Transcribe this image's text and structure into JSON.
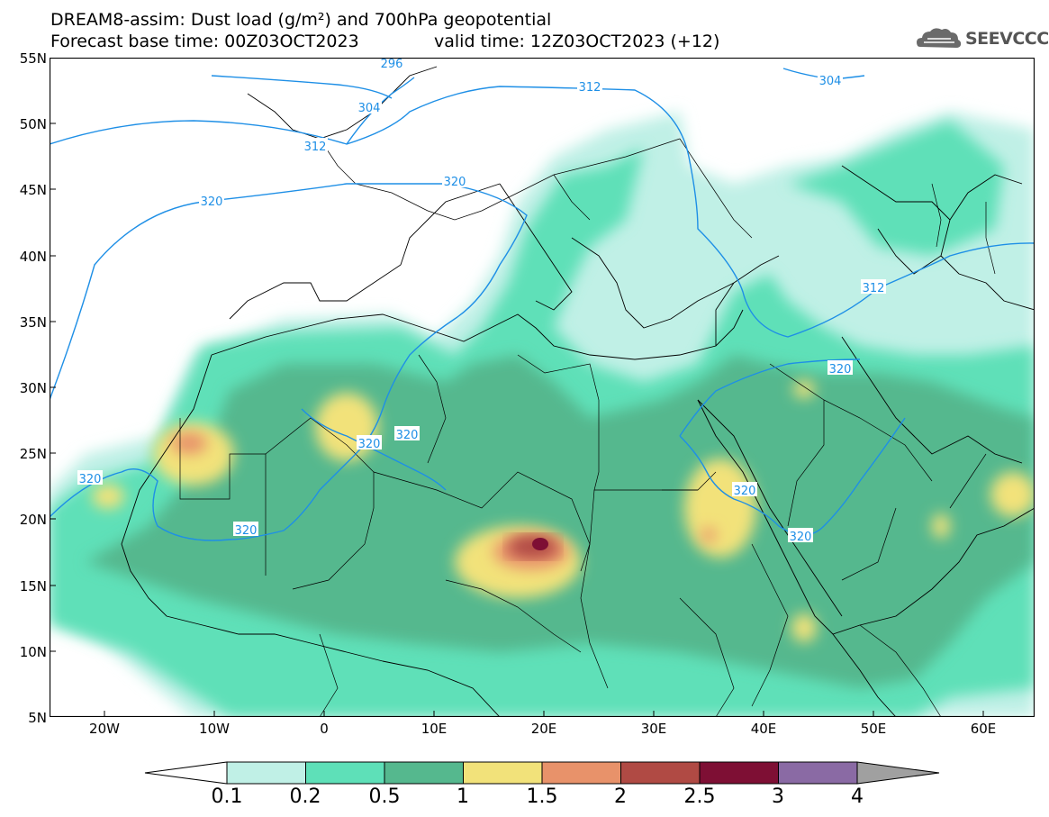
{
  "header": {
    "line1": "DREAM8-assim: Dust load (g/m²) and 700hPa geopotential",
    "line2a": "Forecast base time: 00Z03OCT2023",
    "line2b": "valid time: 12Z03OCT2023 (+12)",
    "logo_text": "SEEVCCC",
    "logo_icon": "cloud-icon"
  },
  "map": {
    "lat_labels": [
      "55N",
      "50N",
      "45N",
      "40N",
      "35N",
      "30N",
      "25N",
      "20N",
      "15N",
      "10N",
      "5N"
    ],
    "lon_labels": [
      "20W",
      "10W",
      "0",
      "10E",
      "20E",
      "30E",
      "40E",
      "50E",
      "60E"
    ],
    "contour_labels": [
      "296",
      "304",
      "312",
      "320",
      "320",
      "320",
      "320",
      "320",
      "320",
      "320",
      "312",
      "304",
      "312",
      "320",
      "320"
    ],
    "colors": {
      "c01": "#c0f0e6",
      "c02": "#5ee0b8",
      "c05": "#55b88e",
      "c1": "#f2e27a",
      "c15": "#e8926a",
      "c2": "#b04a44",
      "c25": "#7e0f34",
      "c3": "#8a6aa4",
      "contour": "#1e8fe6"
    }
  },
  "colorbar": {
    "labels": [
      "0.1",
      "0.2",
      "0.5",
      "1",
      "1.5",
      "2",
      "2.5",
      "3",
      "4"
    ],
    "colors": [
      "#c0f0e6",
      "#5ee0b8",
      "#55b88e",
      "#f2e27a",
      "#e8926a",
      "#b04a44",
      "#7e0f34",
      "#8a6aa4"
    ],
    "under": "#ffffff",
    "over": "#a0a0a0"
  }
}
